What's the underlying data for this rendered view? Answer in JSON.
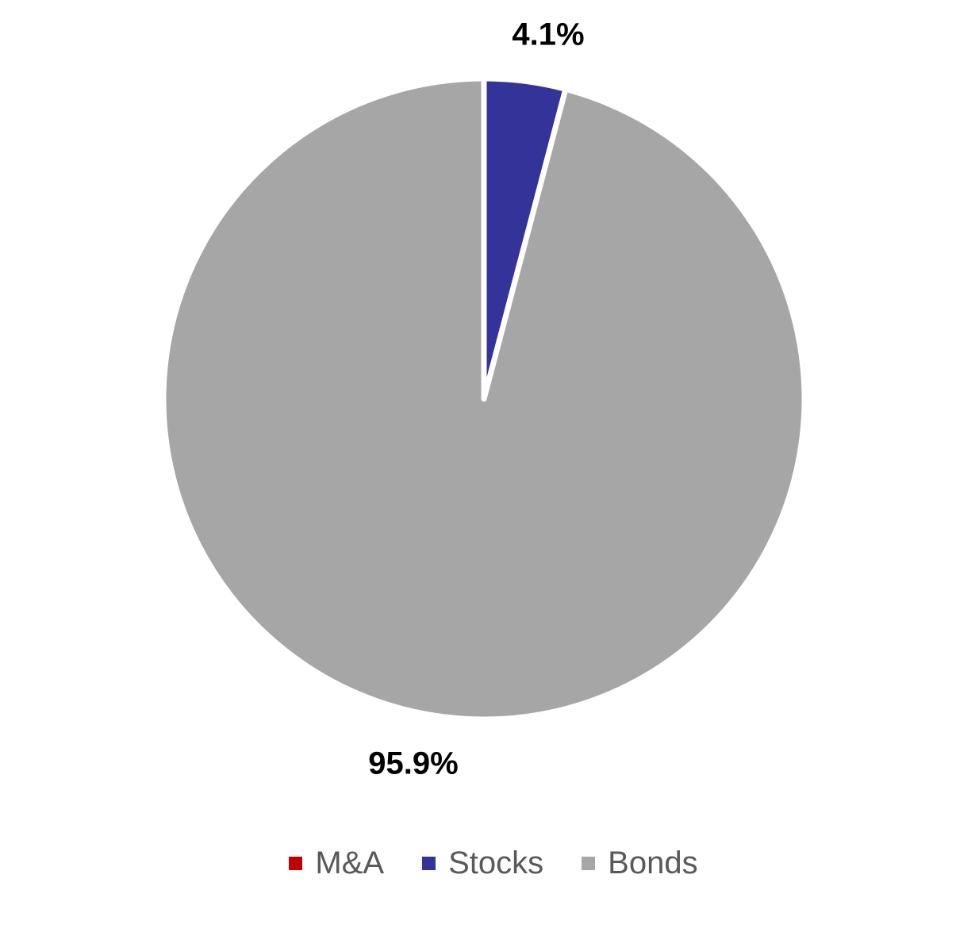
{
  "chart_data": {
    "type": "pie",
    "series": [
      {
        "name": "M&A",
        "value": 0.0,
        "color": "#C00000"
      },
      {
        "name": "Stocks",
        "value": 4.1,
        "color": "#333399",
        "label": "4.1%"
      },
      {
        "name": "Bonds",
        "value": 95.9,
        "color": "#A6A6A6",
        "label": "95.9%"
      }
    ],
    "start_angle": "12 o'clock",
    "direction": "clockwise",
    "legend_position": "bottom"
  },
  "legend": {
    "items": [
      {
        "label": "M&A",
        "color": "#C00000"
      },
      {
        "label": "Stocks",
        "color": "#333399"
      },
      {
        "label": "Bonds",
        "color": "#A6A6A6"
      }
    ]
  }
}
